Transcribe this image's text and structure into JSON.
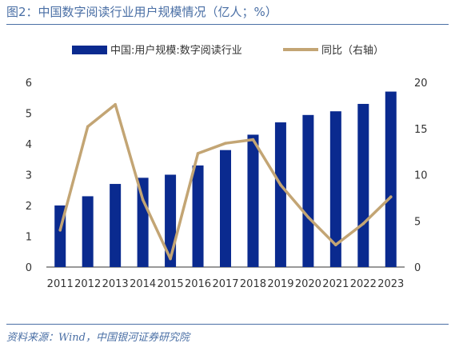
{
  "header": {
    "title": "图2：中国数字阅读行业用户规模情况（亿人；%）"
  },
  "footer": {
    "source": "资料来源：Wind，中国银河证券研究院"
  },
  "colors": {
    "bar": "#0a2a8f",
    "line": "#c3a574",
    "accent": "#4a6fa5"
  },
  "chart_data": {
    "type": "bar",
    "title": "图2：中国数字阅读行业用户规模情况（亿人；%）",
    "categories": [
      "2011",
      "2012",
      "2013",
      "2014",
      "2015",
      "2016",
      "2017",
      "2018",
      "2019",
      "2020",
      "2021",
      "2022",
      "2023"
    ],
    "series": [
      {
        "name": "中国:用户规模:数字阅读行业",
        "type": "bar",
        "axis": "left",
        "values": [
          2.0,
          2.3,
          2.7,
          2.9,
          3.0,
          3.3,
          3.8,
          4.3,
          4.7,
          4.94,
          5.06,
          5.3,
          5.7
        ]
      },
      {
        "name": "同比（右轴）",
        "type": "line",
        "axis": "right",
        "values": [
          4.0,
          15.2,
          17.6,
          7.3,
          0.9,
          12.3,
          13.4,
          13.8,
          8.9,
          5.4,
          2.4,
          4.7,
          7.6
        ]
      }
    ],
    "ylim_left": [
      0,
      6
    ],
    "yticks_left": [
      "0",
      "1",
      "2",
      "3",
      "4",
      "5",
      "6"
    ],
    "ylim_right": [
      0,
      20
    ],
    "yticks_right": [
      "0",
      "5",
      "10",
      "15",
      "20"
    ],
    "legend_position": "top",
    "grid": false
  }
}
